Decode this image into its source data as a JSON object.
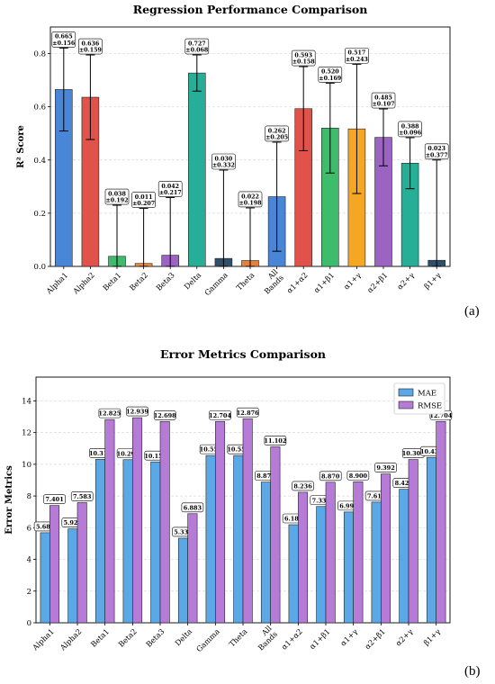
{
  "chart_data": [
    {
      "type": "bar",
      "title": "Regression Performance Comparison",
      "ylabel": "R² Score",
      "xlabel": "",
      "ylim": [
        0,
        0.9
      ],
      "yticks": [
        "0.0",
        "0.2",
        "0.4",
        "0.6",
        "0.8"
      ],
      "grid": true,
      "categories": [
        "Alpha1",
        "Alpha2",
        "Beta1",
        "Beta2",
        "Beta3",
        "Delta",
        "Gamma",
        "Theta",
        "All Bands",
        "α1+α2",
        "α1+β1",
        "α1+γ",
        "α2+β1",
        "α2+γ",
        "β1+γ"
      ],
      "values": [
        0.665,
        0.636,
        0.038,
        0.011,
        0.042,
        0.727,
        0.03,
        0.022,
        0.262,
        0.593,
        0.52,
        0.517,
        0.485,
        0.388,
        0.023
      ],
      "errors": [
        0.156,
        0.159,
        0.192,
        0.207,
        0.217,
        0.068,
        0.332,
        0.198,
        0.205,
        0.158,
        0.169,
        0.243,
        0.107,
        0.096,
        0.377
      ],
      "value_labels": [
        "0.665",
        "0.636",
        "0.038",
        "0.011",
        "0.042",
        "0.727",
        "0.030",
        "0.022",
        "0.262",
        "0.593",
        "0.520",
        "0.517",
        "0.485",
        "0.388",
        "0.023"
      ],
      "error_labels": [
        "±0.156",
        "±0.159",
        "±0.192",
        "±0.207",
        "±0.217",
        "±0.068",
        "±0.332",
        "±0.198",
        "±0.205",
        "±0.158",
        "±0.169",
        "±0.243",
        "±0.107",
        "±0.096",
        "±0.377"
      ],
      "colors": [
        "#4a86d8",
        "#e0524a",
        "#3dbd6c",
        "#ee8a3a",
        "#9b63c2",
        "#27ae96",
        "#2f4f6a",
        "#e8803a",
        "#4a86d8",
        "#e0524a",
        "#3dbd6c",
        "#f5a623",
        "#9b63c2",
        "#27ae96",
        "#2f4f6a"
      ],
      "panel_label": "(a)"
    },
    {
      "type": "bar",
      "title": "Error Metrics Comparison",
      "ylabel": "Error Metrics",
      "xlabel": "",
      "ylim": [
        0,
        15.5
      ],
      "yticks": [
        "0",
        "2",
        "4",
        "6",
        "8",
        "10",
        "12",
        "14"
      ],
      "grid": true,
      "legend_position": "top-right",
      "categories": [
        "Alpha1",
        "Alpha2",
        "Beta1",
        "Beta2",
        "Beta3",
        "Delta",
        "Gamma",
        "Theta",
        "All Bands",
        "α1+α2",
        "α1+β1",
        "α1+γ",
        "α2+β1",
        "α2+γ",
        "β1+γ"
      ],
      "series": [
        {
          "name": "MAE",
          "color": "#5aa9e6",
          "values": [
            5.683,
            5.927,
            10.311,
            10.291,
            10.154,
            5.338,
            10.554,
            10.552,
            8.879,
            6.188,
            7.338,
            6.99,
            7.614,
            8.426,
            10.437
          ],
          "labels": [
            "5.683",
            "5.927",
            "10.311",
            "10.291",
            "10.154",
            "5.338",
            "10.554",
            "10.552",
            "8.879",
            "6.188",
            "7.338",
            "6.990",
            "7.614",
            "8.426",
            "10.437"
          ]
        },
        {
          "name": "RMSE",
          "color": "#b57bd6",
          "values": [
            7.401,
            7.583,
            12.825,
            12.939,
            12.698,
            6.883,
            12.704,
            12.876,
            11.102,
            8.236,
            8.87,
            8.9,
            9.392,
            10.301,
            12.704
          ],
          "labels": [
            "7.401",
            "7.583",
            "12.825",
            "12.939",
            "12.698",
            "6.883",
            "12.704",
            "12.876",
            "11.102",
            "8.236",
            "8.870",
            "8.900",
            "9.392",
            "10.301",
            "12.704"
          ]
        }
      ],
      "panel_label": "(b)"
    }
  ]
}
